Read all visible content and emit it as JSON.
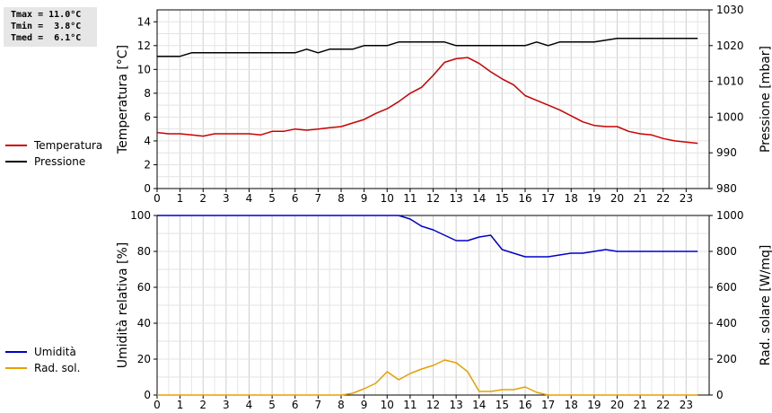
{
  "stats": {
    "tmax": "Tmax = 11.0°C",
    "tmin": "Tmin =  3.8°C",
    "tmed": "Tmed =  6.1°C"
  },
  "chart_data": [
    {
      "type": "line",
      "xticks": [
        "0",
        "1",
        "2",
        "3",
        "4",
        "5",
        "6",
        "7",
        "8",
        "9",
        "10",
        "11",
        "12",
        "13",
        "14",
        "15",
        "16",
        "17",
        "18",
        "19",
        "20",
        "21",
        "22",
        "23"
      ],
      "xlim": [
        0,
        24
      ],
      "grid": true,
      "ylabel": "Temperatura [°C]",
      "ylim": [
        0,
        15
      ],
      "yticks": [
        "0",
        "2",
        "4",
        "6",
        "8",
        "10",
        "12",
        "14"
      ],
      "y2label": "Pressione [mbar]",
      "y2lim": [
        980,
        1030
      ],
      "y2ticks": [
        "980",
        "990",
        "1000",
        "1010",
        "1020",
        "1030"
      ],
      "legend_position": "left",
      "series": [
        {
          "name": "Temperatura",
          "axis": "left",
          "color": "#cc0000",
          "x": [
            0,
            0.5,
            1,
            1.5,
            2,
            2.5,
            3,
            3.5,
            4,
            4.5,
            5,
            5.5,
            6,
            6.5,
            7,
            7.5,
            8,
            8.5,
            9,
            9.5,
            10,
            10.5,
            11,
            11.5,
            12,
            12.5,
            13,
            13.5,
            14,
            14.5,
            15,
            15.5,
            16,
            16.5,
            17,
            17.5,
            18,
            18.5,
            19,
            19.5,
            20,
            20.5,
            21,
            21.5,
            22,
            22.5,
            23,
            23.5
          ],
          "values": [
            4.7,
            4.6,
            4.6,
            4.5,
            4.4,
            4.6,
            4.6,
            4.6,
            4.6,
            4.5,
            4.8,
            4.8,
            5.0,
            4.9,
            5.0,
            5.1,
            5.2,
            5.5,
            5.8,
            6.3,
            6.7,
            7.3,
            8.0,
            8.5,
            9.5,
            10.6,
            10.9,
            11.0,
            10.5,
            9.8,
            9.2,
            8.7,
            7.8,
            7.4,
            7.0,
            6.6,
            6.1,
            5.6,
            5.3,
            5.2,
            5.2,
            4.8,
            4.6,
            4.5,
            4.2,
            4.0,
            3.9,
            3.8
          ]
        },
        {
          "name": "Pressione",
          "axis": "right",
          "color": "#000000",
          "x": [
            0,
            1,
            1.5,
            6,
            6.5,
            7,
            7.5,
            8.5,
            9,
            10,
            10.5,
            12.5,
            13,
            13.5,
            15,
            16,
            16.5,
            17,
            17.5,
            19,
            20,
            20.5,
            23.5
          ],
          "values": [
            1017,
            1017,
            1018,
            1018,
            1019,
            1018,
            1019,
            1019,
            1020,
            1020,
            1021,
            1021,
            1020,
            1020,
            1020,
            1020,
            1021,
            1020,
            1021,
            1021,
            1022,
            1022,
            1022
          ]
        }
      ]
    },
    {
      "type": "line",
      "xticks": [
        "0",
        "1",
        "2",
        "3",
        "4",
        "5",
        "6",
        "7",
        "8",
        "9",
        "10",
        "11",
        "12",
        "13",
        "14",
        "15",
        "16",
        "17",
        "18",
        "19",
        "20",
        "21",
        "22",
        "23"
      ],
      "xlim": [
        0,
        24
      ],
      "grid": true,
      "ylabel": "Umidità relativa [%]",
      "ylim": [
        0,
        100
      ],
      "yticks": [
        "0",
        "20",
        "40",
        "60",
        "80",
        "100"
      ],
      "y2label": "Rad. solare [W/mq]",
      "y2lim": [
        0,
        1000
      ],
      "y2ticks": [
        "0",
        "200",
        "400",
        "600",
        "800",
        "1000"
      ],
      "legend_position": "left",
      "series": [
        {
          "name": "Umidità",
          "axis": "left",
          "color": "#0000cc",
          "x": [
            0,
            10.5,
            11,
            11.5,
            12,
            12.5,
            13,
            13.5,
            14,
            14.5,
            15,
            15.5,
            16,
            16.5,
            17,
            17.5,
            18,
            18.5,
            19,
            19.5,
            20,
            20.5,
            21,
            22,
            23,
            23.5
          ],
          "values": [
            100,
            100,
            98,
            94,
            92,
            89,
            86,
            86,
            88,
            89,
            81,
            79,
            77,
            77,
            77,
            78,
            79,
            79,
            80,
            81,
            80,
            80,
            80,
            80,
            80,
            80
          ]
        },
        {
          "name": "Rad. sol.",
          "axis": "right",
          "color": "#e8a000",
          "x": [
            0,
            8,
            8.5,
            9,
            9.5,
            10,
            10.5,
            11,
            11.5,
            12,
            12.5,
            13,
            13.5,
            14,
            14.5,
            15,
            15.5,
            16,
            16.5,
            17,
            17.5,
            23.5
          ],
          "values": [
            0,
            0,
            10,
            35,
            65,
            130,
            85,
            120,
            145,
            165,
            195,
            180,
            130,
            20,
            20,
            30,
            30,
            45,
            15,
            0,
            0,
            0
          ]
        }
      ]
    }
  ]
}
